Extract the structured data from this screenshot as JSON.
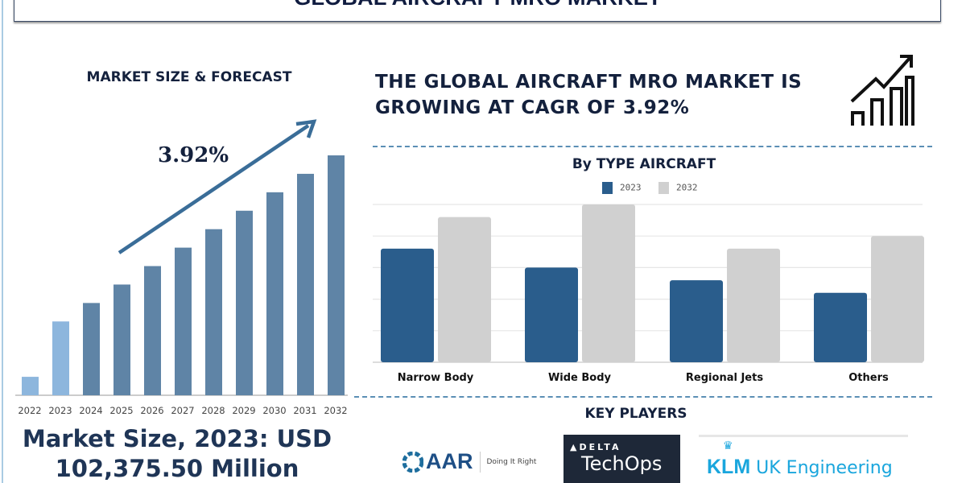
{
  "header": {
    "title": "GLOBAL AIRCRAFT MRO MARKET"
  },
  "left": {
    "section_title": "MARKET SIZE & FORECAST",
    "cagr_label": "3.92%",
    "market_size_line1": "Market Size, 2023: USD",
    "market_size_line2": "102,375.50 Million"
  },
  "right": {
    "headline_line1": "THE GLOBAL AIRCRAFT MRO MARKET IS",
    "headline_line2": "GROWING AT CAGR OF 3.92%",
    "icon": "growth-chart-icon"
  },
  "key_players": {
    "title": "KEY PLAYERS",
    "logos": [
      {
        "name": "AAR",
        "tagline": "Doing It Right"
      },
      {
        "name": "DELTA",
        "sub": "TechOps"
      },
      {
        "name": "KLM",
        "sub": "UK Engineering"
      }
    ]
  },
  "colors": {
    "navy": "#14213d",
    "bar_forecast": "#5f84a6",
    "bar_hist": "#8db6dd",
    "series_2023": "#2a5d8c",
    "series_2032": "#d0d0d0"
  },
  "chart_data": [
    {
      "type": "bar",
      "title": "MARKET SIZE & FORECAST",
      "categories": [
        "2022",
        "2023",
        "2024",
        "2025",
        "2026",
        "2027",
        "2028",
        "2029",
        "2030",
        "2031",
        "2032"
      ],
      "values": [
        10,
        40,
        50,
        60,
        70,
        80,
        90,
        100,
        110,
        120,
        130
      ],
      "annotation": "3.92%",
      "grid": false
    },
    {
      "type": "bar",
      "title": "By TYPE AIRCRAFT",
      "categories": [
        "Narrow Body",
        "Wide Body",
        "Regional Jets",
        "Others"
      ],
      "series": [
        {
          "name": "2023",
          "values": [
            3.6,
            3.0,
            2.6,
            2.2
          ]
        },
        {
          "name": "2032",
          "values": [
            4.6,
            5.0,
            3.6,
            4.0
          ]
        }
      ],
      "ylim": [
        0,
        5
      ],
      "grid": true,
      "legend": "top"
    }
  ]
}
